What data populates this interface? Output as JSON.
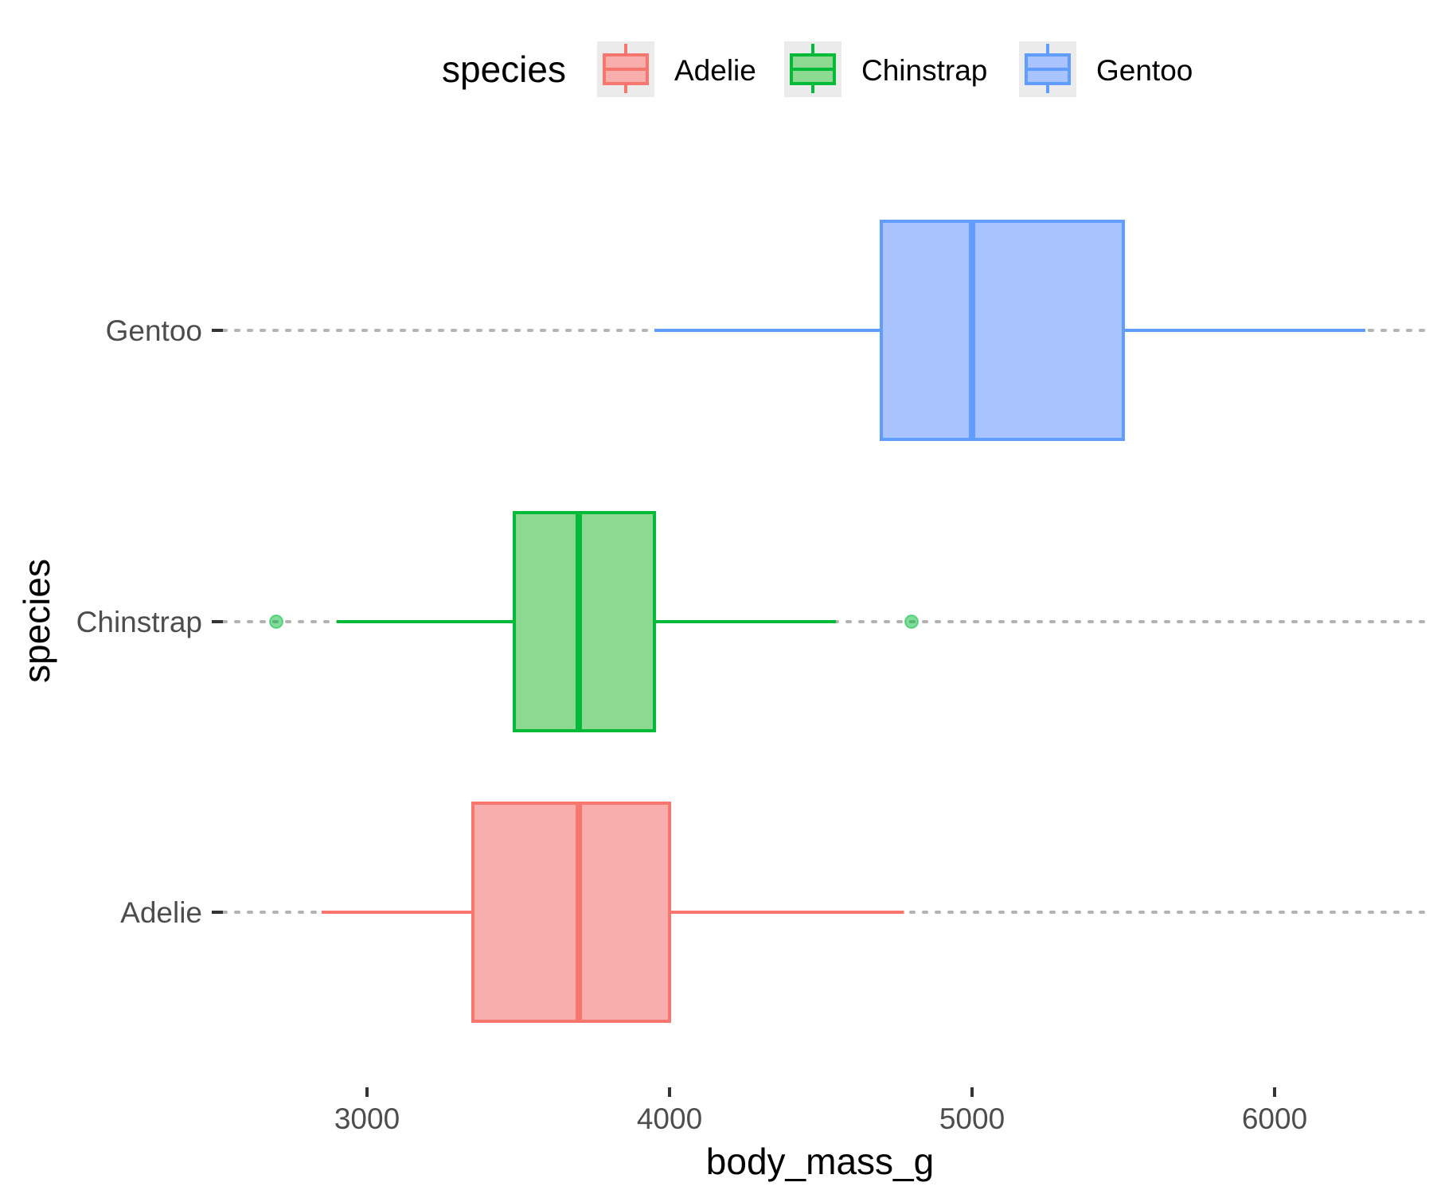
{
  "chart_data": {
    "type": "boxplot",
    "orientation": "horizontal",
    "xlabel": "body_mass_g",
    "ylabel": "species",
    "xlim": [
      2500,
      6500
    ],
    "xticks": [
      3000,
      4000,
      5000,
      6000
    ],
    "categories": [
      "Adelie",
      "Chinstrap",
      "Gentoo"
    ],
    "legend": {
      "title": "species",
      "position": "top",
      "entries": [
        "Adelie",
        "Chinstrap",
        "Gentoo"
      ]
    },
    "grid": "dotted major y gridlines only",
    "series": [
      {
        "name": "Adelie",
        "color": "#F8766D",
        "fill": "#F8AEAC",
        "whisker_low": 2850,
        "q1": 3350,
        "median": 3700,
        "q3": 4000,
        "whisker_high": 4775,
        "outliers": []
      },
      {
        "name": "Chinstrap",
        "color": "#00BA38",
        "fill": "#8ED992",
        "whisker_low": 2900,
        "q1": 3487,
        "median": 3700,
        "q3": 3950,
        "whisker_high": 4550,
        "outliers": [
          2700,
          4800
        ]
      },
      {
        "name": "Gentoo",
        "color": "#619CFF",
        "fill": "#A8C3FF",
        "whisker_low": 3950,
        "q1": 4700,
        "median": 5000,
        "q3": 5500,
        "whisker_high": 6300,
        "outliers": []
      }
    ]
  }
}
